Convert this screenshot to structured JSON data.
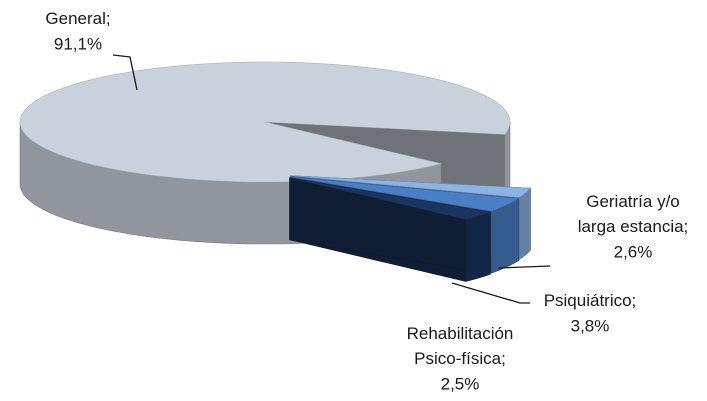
{
  "chart_data": {
    "type": "pie3d",
    "categories": [
      "General;",
      "Geriatría y/o larga estancia;",
      "Psiquiátrico;",
      "Rehabilitación Psico-física;"
    ],
    "values": [
      91.1,
      2.6,
      3.8,
      2.5
    ],
    "value_labels": [
      "91,1%",
      "2,6%",
      "3,8%",
      "2,5%"
    ],
    "colors": [
      "#c9d1dc",
      "#8db3e2",
      "#4a7fc6",
      "#1c3560"
    ]
  }
}
